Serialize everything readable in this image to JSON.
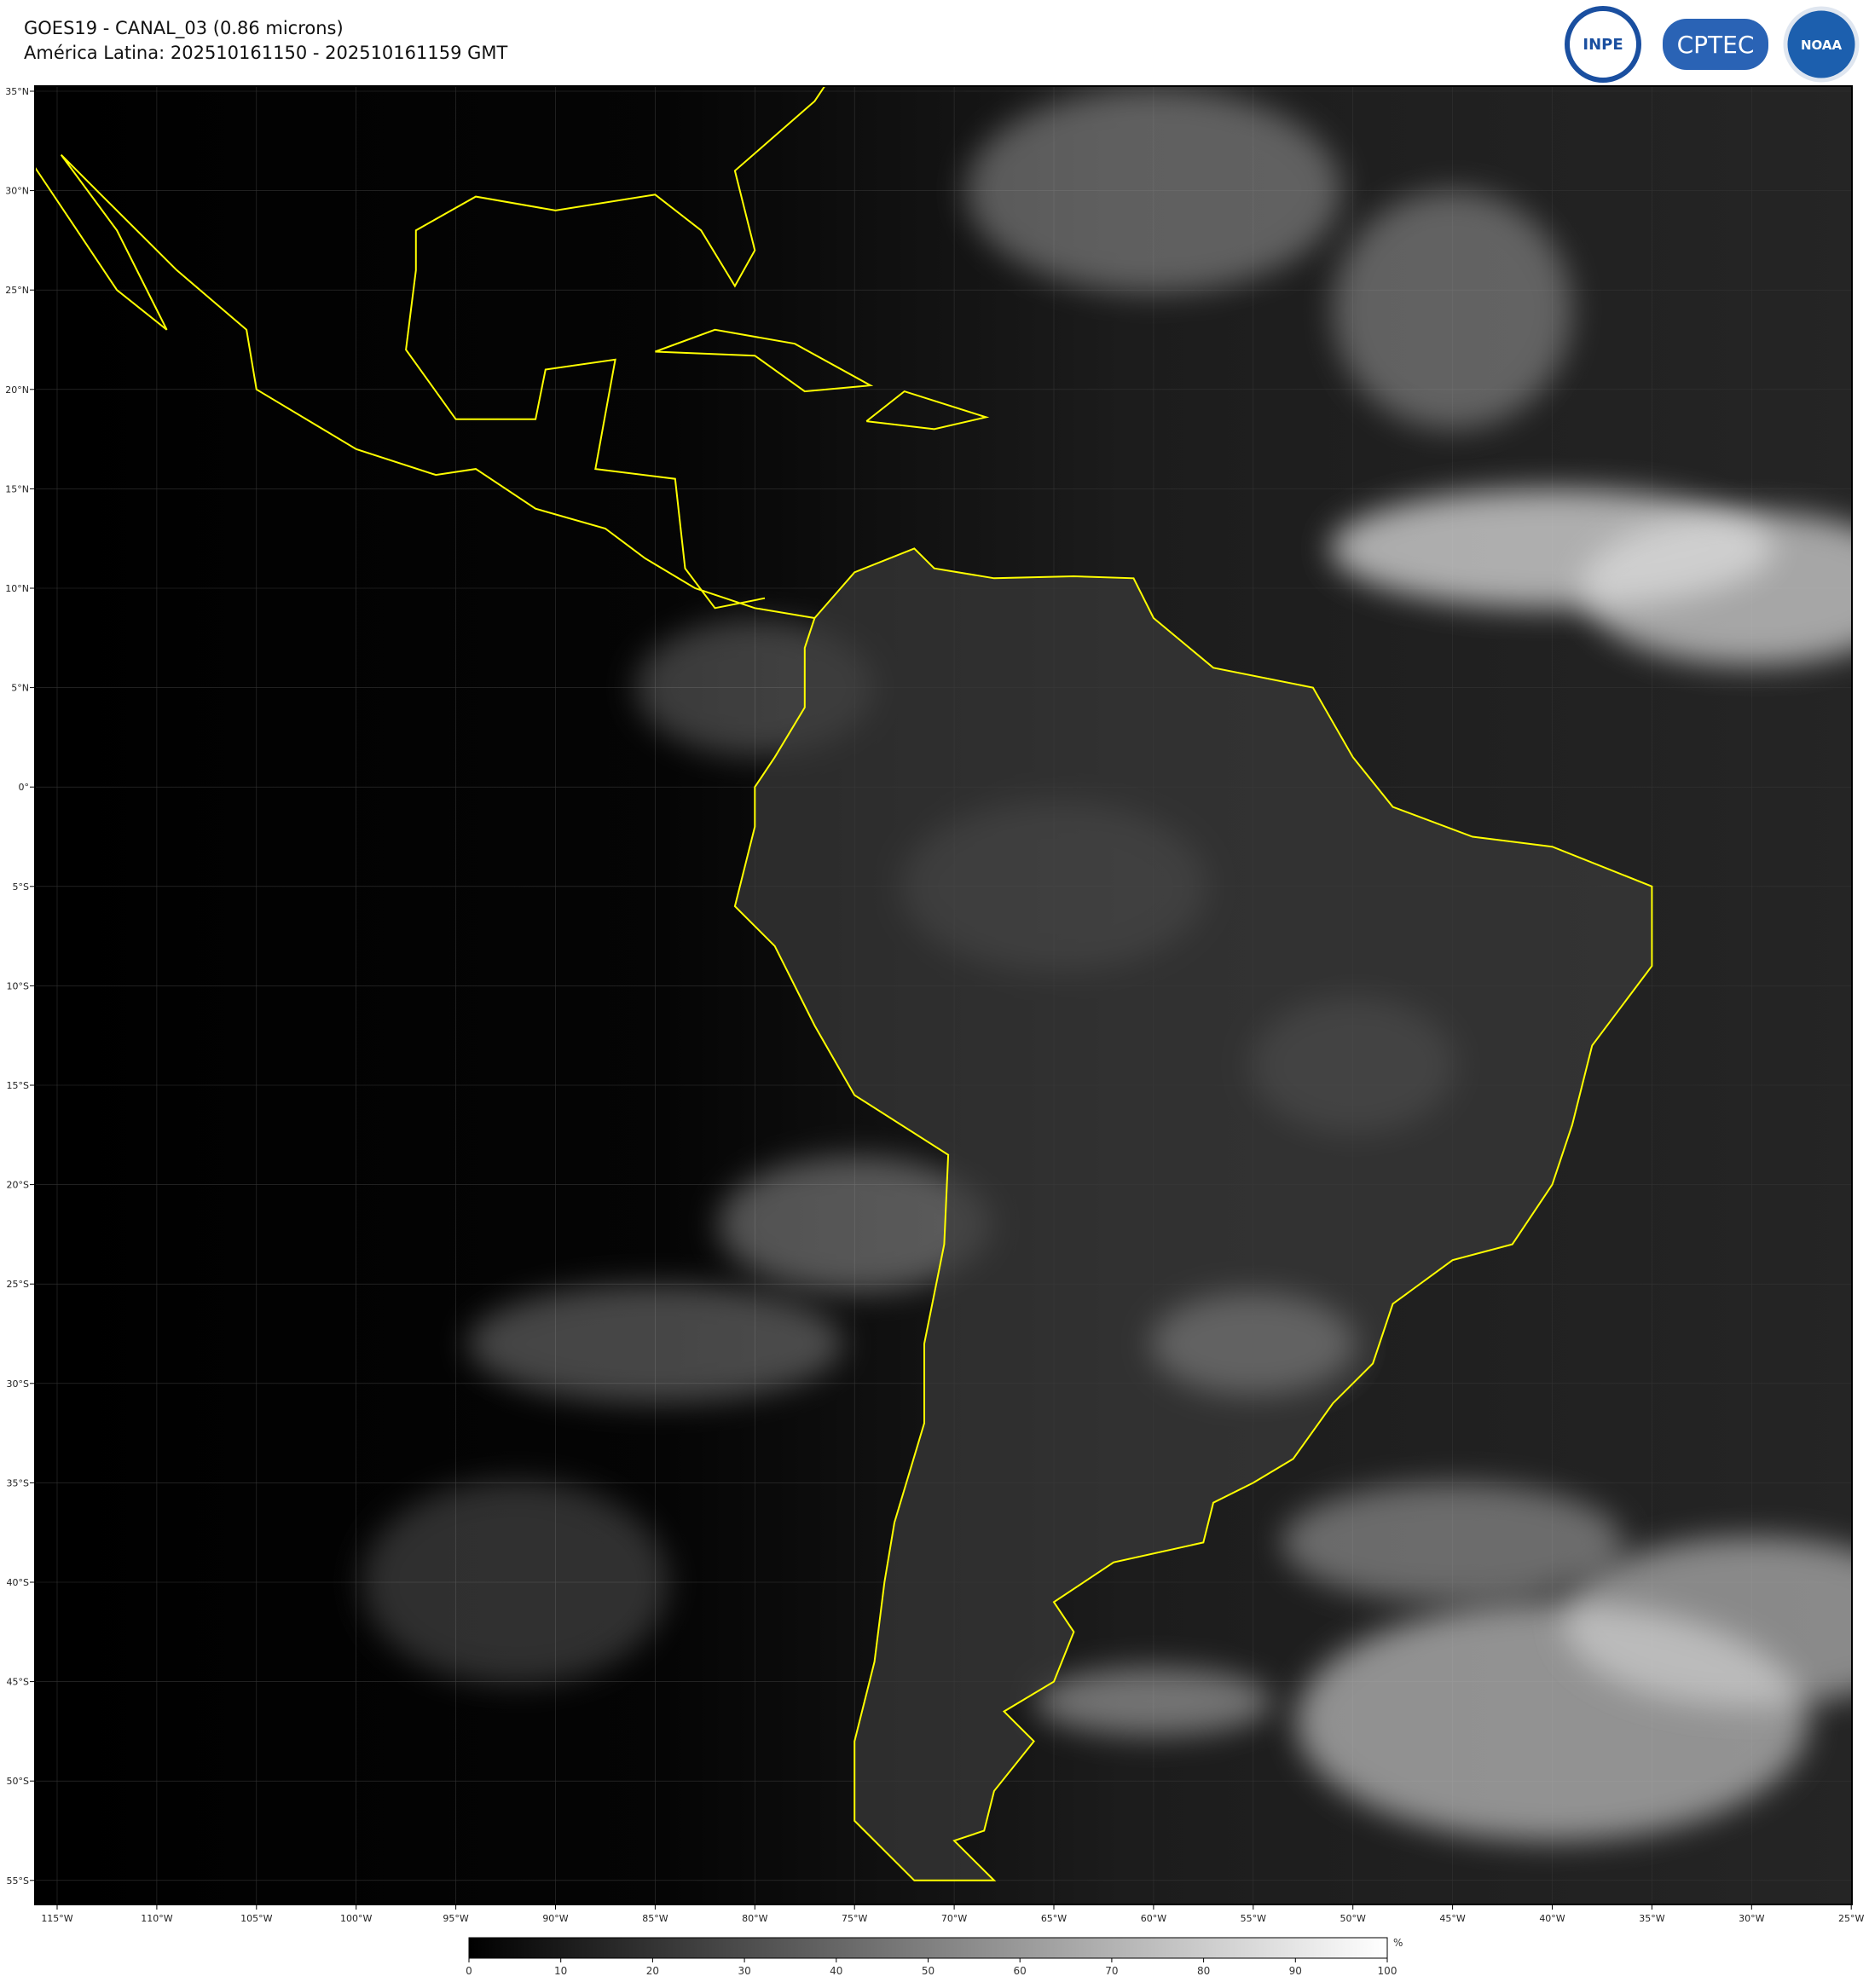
{
  "header": {
    "title": "GOES19 - CANAL_03 (0.86 microns)",
    "subtitle": "América Latina: 202510161150 - 202510161159 GMT",
    "logos": [
      "INPE",
      "CPTEC",
      "NOAA"
    ]
  },
  "map": {
    "lat_labels": [
      "35°N",
      "30°N",
      "25°N",
      "20°N",
      "15°N",
      "10°N",
      "5°N",
      "0°",
      "5°S",
      "10°S",
      "15°S",
      "20°S",
      "25°S",
      "30°S",
      "35°S",
      "40°S",
      "45°S",
      "50°S",
      "55°S"
    ],
    "lon_labels": [
      "115°W",
      "110°W",
      "105°W",
      "100°W",
      "95°W",
      "90°W",
      "85°W",
      "80°W",
      "75°W",
      "70°W",
      "65°W",
      "60°W",
      "55°W",
      "50°W",
      "45°W",
      "40°W",
      "35°W",
      "30°W",
      "25°W"
    ]
  },
  "colorbar": {
    "ticks": [
      0,
      10,
      20,
      30,
      40,
      50,
      60,
      70,
      80,
      90,
      100
    ],
    "unit": "%"
  }
}
